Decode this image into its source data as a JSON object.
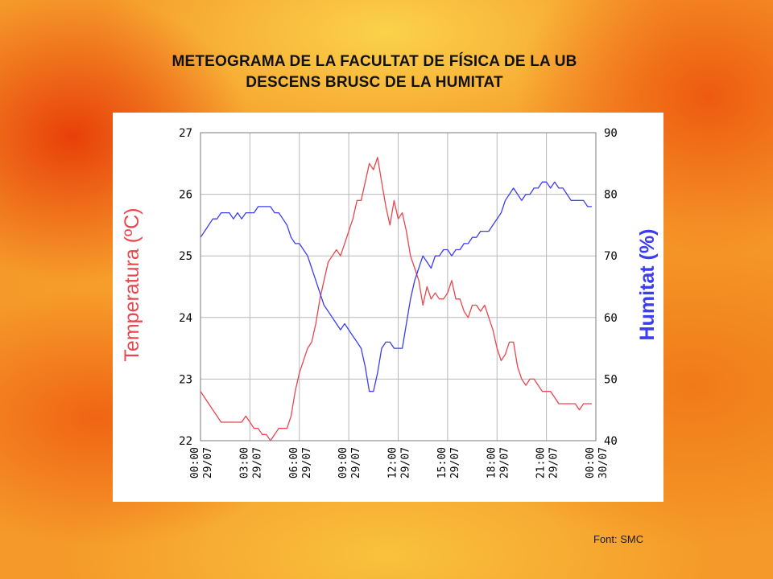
{
  "title_line1": "METEOGRAMA DE LA FACULTAT DE FÍSICA DE LA UB",
  "title_line2": "DESCENS BRUSC DE LA HUMITAT",
  "source": "Font: SMC",
  "colors": {
    "temperature": "#e8464c",
    "humidity": "#3c3cf0",
    "grid": "#b8b8b8"
  },
  "chart_data": {
    "type": "line",
    "ylabel_left": "Temperatura (ºC)",
    "ylabel_right": "Humitat (%)",
    "ylim_left": [
      22,
      27
    ],
    "ylim_right": [
      40,
      90
    ],
    "yticks_left": [
      "22",
      "23",
      "24",
      "25",
      "26",
      "27"
    ],
    "yticks_right": [
      "40",
      "50",
      "60",
      "70",
      "80",
      "90"
    ],
    "xlim_hours": [
      0,
      24
    ],
    "x_ticks": [
      {
        "hour": 0,
        "time": "00:00",
        "date": "29/07"
      },
      {
        "hour": 3,
        "time": "03:00",
        "date": "29/07"
      },
      {
        "hour": 6,
        "time": "06:00",
        "date": "29/07"
      },
      {
        "hour": 9,
        "time": "09:00",
        "date": "29/07"
      },
      {
        "hour": 12,
        "time": "12:00",
        "date": "29/07"
      },
      {
        "hour": 15,
        "time": "15:00",
        "date": "29/07"
      },
      {
        "hour": 18,
        "time": "18:00",
        "date": "29/07"
      },
      {
        "hour": 21,
        "time": "21:00",
        "date": "29/07"
      },
      {
        "hour": 24,
        "time": "00:00",
        "date": "30/07"
      }
    ],
    "grid": true,
    "series": [
      {
        "name": "Temperatura (ºC)",
        "axis": "left",
        "x": [
          0,
          0.25,
          0.5,
          0.75,
          1.0,
          1.25,
          1.5,
          1.75,
          2.0,
          2.25,
          2.5,
          2.75,
          3.0,
          3.25,
          3.5,
          3.75,
          4.0,
          4.25,
          4.5,
          4.75,
          5.0,
          5.25,
          5.5,
          5.75,
          6.0,
          6.25,
          6.5,
          6.75,
          7.0,
          7.25,
          7.5,
          7.75,
          8.0,
          8.25,
          8.5,
          8.75,
          9.0,
          9.25,
          9.5,
          9.75,
          10.0,
          10.25,
          10.5,
          10.75,
          11.0,
          11.25,
          11.5,
          11.75,
          12.0,
          12.25,
          12.5,
          12.75,
          13.0,
          13.25,
          13.5,
          13.75,
          14.0,
          14.25,
          14.5,
          14.75,
          15.0,
          15.25,
          15.5,
          15.75,
          16.0,
          16.25,
          16.5,
          16.75,
          17.0,
          17.25,
          17.5,
          17.75,
          18.0,
          18.25,
          18.5,
          18.75,
          19.0,
          19.25,
          19.5,
          19.75,
          20.0,
          20.25,
          20.5,
          20.75,
          21.0,
          21.25,
          21.5,
          21.75,
          22.0,
          22.25,
          22.5,
          22.75,
          23.0,
          23.25,
          23.5,
          23.75
        ],
        "values": [
          22.8,
          22.7,
          22.6,
          22.5,
          22.4,
          22.3,
          22.3,
          22.3,
          22.3,
          22.3,
          22.3,
          22.4,
          22.3,
          22.2,
          22.2,
          22.1,
          22.1,
          22.0,
          22.1,
          22.2,
          22.2,
          22.2,
          22.4,
          22.8,
          23.1,
          23.3,
          23.5,
          23.6,
          23.9,
          24.3,
          24.6,
          24.9,
          25.0,
          25.1,
          25.0,
          25.2,
          25.4,
          25.6,
          25.9,
          25.9,
          26.2,
          26.5,
          26.4,
          26.6,
          26.2,
          25.8,
          25.5,
          25.9,
          25.6,
          25.7,
          25.4,
          25.0,
          24.8,
          24.6,
          24.2,
          24.5,
          24.3,
          24.4,
          24.3,
          24.3,
          24.4,
          24.6,
          24.3,
          24.3,
          24.1,
          24.0,
          24.2,
          24.2,
          24.1,
          24.2,
          24.0,
          23.8,
          23.5,
          23.3,
          23.4,
          23.6,
          23.6,
          23.2,
          23.0,
          22.9,
          23.0,
          23.0,
          22.9,
          22.8,
          22.8,
          22.8,
          22.7,
          22.6,
          22.6,
          22.6,
          22.6,
          22.6,
          22.5,
          22.6,
          22.6,
          22.6
        ]
      },
      {
        "name": "Humitat (%)",
        "axis": "right",
        "x": [
          0,
          0.25,
          0.5,
          0.75,
          1.0,
          1.25,
          1.5,
          1.75,
          2.0,
          2.25,
          2.5,
          2.75,
          3.0,
          3.25,
          3.5,
          3.75,
          4.0,
          4.25,
          4.5,
          4.75,
          5.0,
          5.25,
          5.5,
          5.75,
          6.0,
          6.25,
          6.5,
          6.75,
          7.0,
          7.25,
          7.5,
          7.75,
          8.0,
          8.25,
          8.5,
          8.75,
          9.0,
          9.25,
          9.5,
          9.75,
          10.0,
          10.25,
          10.5,
          10.75,
          11.0,
          11.25,
          11.5,
          11.75,
          12.0,
          12.25,
          12.5,
          12.75,
          13.0,
          13.25,
          13.5,
          13.75,
          14.0,
          14.25,
          14.5,
          14.75,
          15.0,
          15.25,
          15.5,
          15.75,
          16.0,
          16.25,
          16.5,
          16.75,
          17.0,
          17.25,
          17.5,
          17.75,
          18.0,
          18.25,
          18.5,
          18.75,
          19.0,
          19.25,
          19.5,
          19.75,
          20.0,
          20.25,
          20.5,
          20.75,
          21.0,
          21.25,
          21.5,
          21.75,
          22.0,
          22.25,
          22.5,
          22.75,
          23.0,
          23.25,
          23.5,
          23.75
        ],
        "values": [
          73,
          74,
          75,
          76,
          76,
          77,
          77,
          77,
          76,
          77,
          76,
          77,
          77,
          77,
          78,
          78,
          78,
          78,
          77,
          77,
          76,
          75,
          73,
          72,
          72,
          71,
          70,
          68,
          66,
          64,
          62,
          61,
          60,
          59,
          58,
          59,
          58,
          57,
          56,
          55,
          52,
          48,
          48,
          51,
          55,
          56,
          56,
          55,
          55,
          55,
          59,
          63,
          66,
          68,
          70,
          69,
          68,
          70,
          70,
          71,
          71,
          70,
          71,
          71,
          72,
          72,
          73,
          73,
          74,
          74,
          74,
          75,
          76,
          77,
          79,
          80,
          81,
          80,
          79,
          80,
          80,
          81,
          81,
          82,
          82,
          81,
          82,
          81,
          81,
          80,
          79,
          79,
          79,
          79,
          78,
          78
        ]
      }
    ]
  }
}
